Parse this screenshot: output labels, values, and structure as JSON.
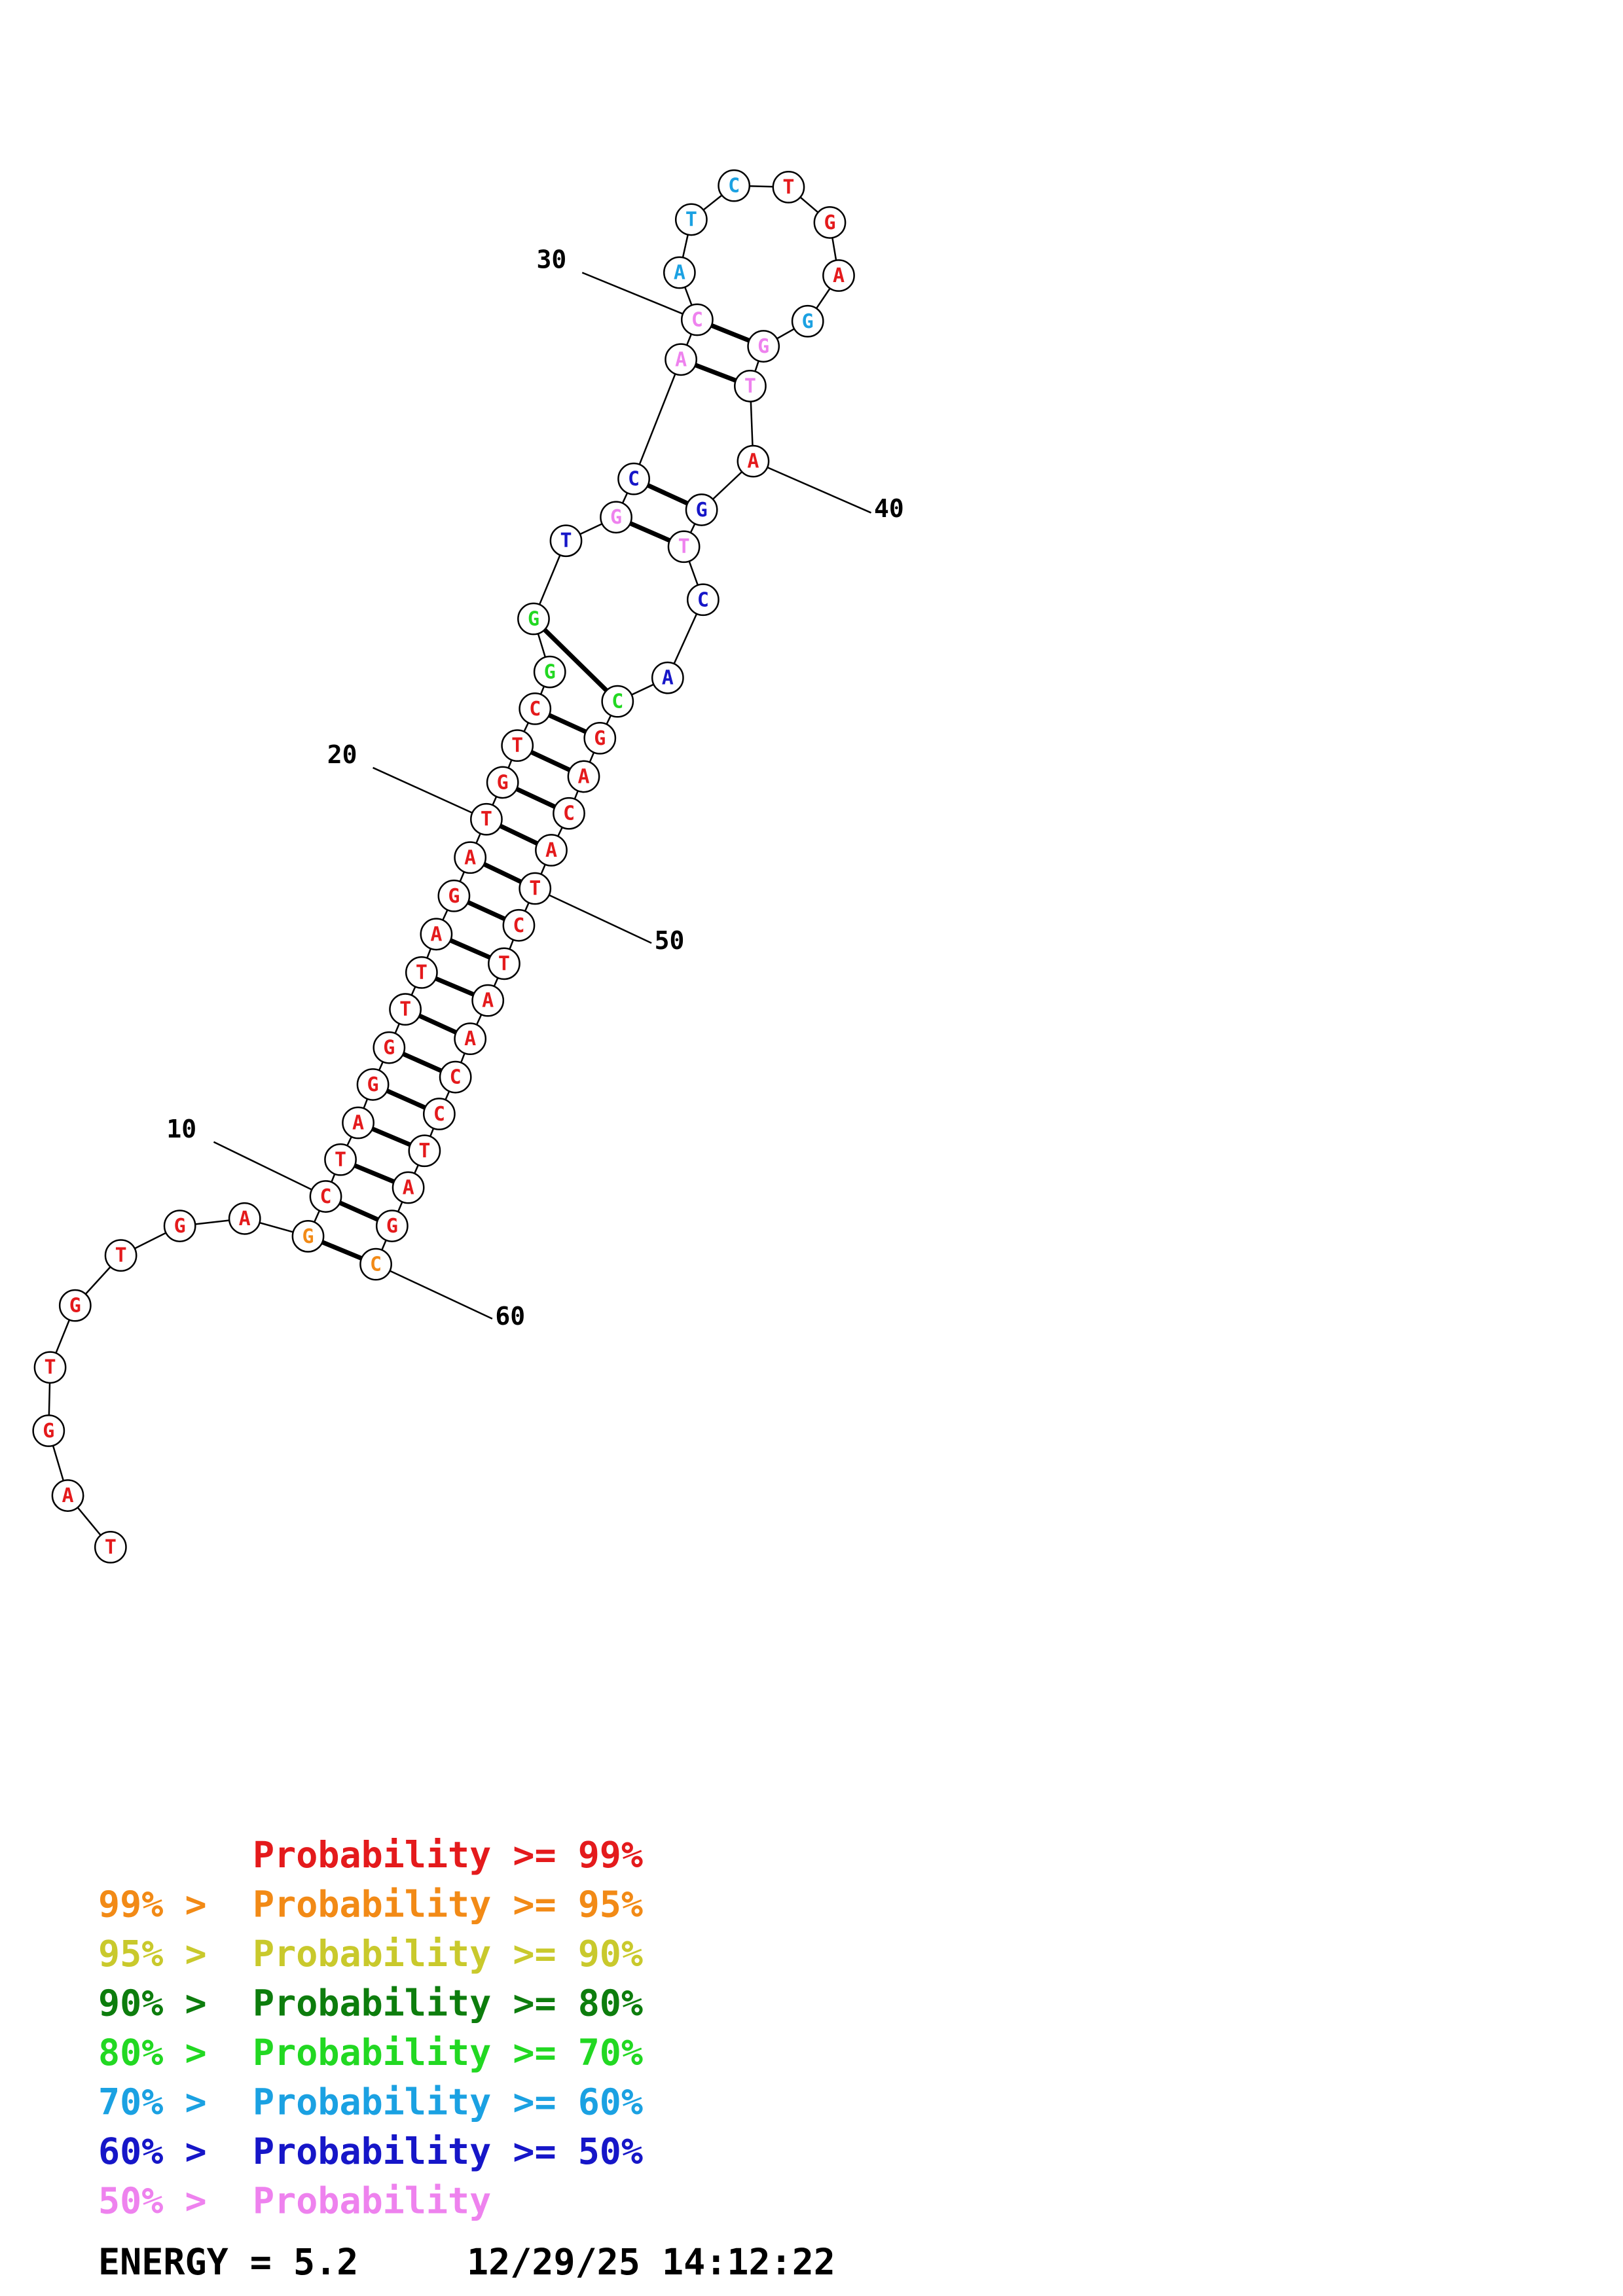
{
  "colors": {
    "red": "#e41a1c",
    "orange": "#f28a16",
    "yellow": "#c9c92c",
    "darkgreen": "#0d7d0d",
    "green": "#22d822",
    "sky": "#1ba1e2",
    "blue": "#1616c8",
    "pink": "#ee82ee"
  },
  "nucleotides": [
    {
      "i": 1,
      "b": "T",
      "c": "red"
    },
    {
      "i": 2,
      "b": "A",
      "c": "red"
    },
    {
      "i": 3,
      "b": "G",
      "c": "red"
    },
    {
      "i": 4,
      "b": "T",
      "c": "red"
    },
    {
      "i": 5,
      "b": "G",
      "c": "red"
    },
    {
      "i": 6,
      "b": "T",
      "c": "red"
    },
    {
      "i": 7,
      "b": "G",
      "c": "red"
    },
    {
      "i": 8,
      "b": "A",
      "c": "red"
    },
    {
      "i": 9,
      "b": "G",
      "c": "orange"
    },
    {
      "i": 10,
      "b": "C",
      "c": "red"
    },
    {
      "i": 11,
      "b": "T",
      "c": "red"
    },
    {
      "i": 12,
      "b": "A",
      "c": "red"
    },
    {
      "i": 13,
      "b": "G",
      "c": "red"
    },
    {
      "i": 14,
      "b": "G",
      "c": "red"
    },
    {
      "i": 15,
      "b": "T",
      "c": "red"
    },
    {
      "i": 16,
      "b": "T",
      "c": "red"
    },
    {
      "i": 17,
      "b": "A",
      "c": "red"
    },
    {
      "i": 18,
      "b": "G",
      "c": "red"
    },
    {
      "i": 19,
      "b": "A",
      "c": "red"
    },
    {
      "i": 20,
      "b": "T",
      "c": "red"
    },
    {
      "i": 21,
      "b": "G",
      "c": "red"
    },
    {
      "i": 22,
      "b": "T",
      "c": "red"
    },
    {
      "i": 23,
      "b": "C",
      "c": "red"
    },
    {
      "i": 24,
      "b": "G",
      "c": "green"
    },
    {
      "i": 25,
      "b": "G",
      "c": "green"
    },
    {
      "i": 26,
      "b": "T",
      "c": "blue"
    },
    {
      "i": 27,
      "b": "G",
      "c": "pink"
    },
    {
      "i": 28,
      "b": "C",
      "c": "blue"
    },
    {
      "i": 29,
      "b": "A",
      "c": "pink"
    },
    {
      "i": 30,
      "b": "C",
      "c": "pink"
    },
    {
      "i": 31,
      "b": "A",
      "c": "sky"
    },
    {
      "i": 32,
      "b": "T",
      "c": "sky"
    },
    {
      "i": 33,
      "b": "C",
      "c": "sky"
    },
    {
      "i": 34,
      "b": "T",
      "c": "red"
    },
    {
      "i": 35,
      "b": "G",
      "c": "red"
    },
    {
      "i": 36,
      "b": "A",
      "c": "red"
    },
    {
      "i": 37,
      "b": "G",
      "c": "sky"
    },
    {
      "i": 38,
      "b": "G",
      "c": "pink"
    },
    {
      "i": 39,
      "b": "T",
      "c": "pink"
    },
    {
      "i": 40,
      "b": "A",
      "c": "red"
    },
    {
      "i": 41,
      "b": "G",
      "c": "blue"
    },
    {
      "i": 42,
      "b": "T",
      "c": "pink"
    },
    {
      "i": 43,
      "b": "C",
      "c": "blue"
    },
    {
      "i": 44,
      "b": "A",
      "c": "blue"
    },
    {
      "i": 45,
      "b": "C",
      "c": "green"
    },
    {
      "i": 46,
      "b": "G",
      "c": "red"
    },
    {
      "i": 47,
      "b": "A",
      "c": "red"
    },
    {
      "i": 48,
      "b": "C",
      "c": "red"
    },
    {
      "i": 49,
      "b": "A",
      "c": "red"
    },
    {
      "i": 50,
      "b": "T",
      "c": "red"
    },
    {
      "i": 51,
      "b": "C",
      "c": "red"
    },
    {
      "i": 52,
      "b": "T",
      "c": "red"
    },
    {
      "i": 53,
      "b": "A",
      "c": "red"
    },
    {
      "i": 54,
      "b": "A",
      "c": "red"
    },
    {
      "i": 55,
      "b": "C",
      "c": "red"
    },
    {
      "i": 56,
      "b": "C",
      "c": "red"
    },
    {
      "i": 57,
      "b": "T",
      "c": "red"
    },
    {
      "i": 58,
      "b": "A",
      "c": "red"
    },
    {
      "i": 59,
      "b": "G",
      "c": "red"
    },
    {
      "i": 60,
      "b": "C",
      "c": "orange"
    }
  ],
  "pairs": [
    [
      9,
      60
    ],
    [
      10,
      59
    ],
    [
      11,
      58
    ],
    [
      12,
      57
    ],
    [
      13,
      56
    ],
    [
      14,
      55
    ],
    [
      15,
      54
    ],
    [
      16,
      53
    ],
    [
      17,
      52
    ],
    [
      18,
      51
    ],
    [
      19,
      50
    ],
    [
      20,
      49
    ],
    [
      21,
      48
    ],
    [
      22,
      47
    ],
    [
      23,
      46
    ],
    [
      25,
      45
    ],
    [
      27,
      42
    ],
    [
      28,
      41
    ],
    [
      29,
      39
    ],
    [
      30,
      38
    ]
  ],
  "position_labels": [
    {
      "n": 10,
      "text": "10"
    },
    {
      "n": 20,
      "text": "20"
    },
    {
      "n": 30,
      "text": "30"
    },
    {
      "n": 40,
      "text": "40"
    },
    {
      "n": 50,
      "text": "50"
    },
    {
      "n": 60,
      "text": "60"
    }
  ],
  "legend": [
    {
      "prefix": "",
      "text": "Probability >= 99%",
      "color": "red"
    },
    {
      "prefix": "99% > ",
      "text": "Probability >= 95%",
      "color": "orange"
    },
    {
      "prefix": "95% > ",
      "text": "Probability >= 90%",
      "color": "yellow"
    },
    {
      "prefix": "90% > ",
      "text": "Probability >= 80%",
      "color": "darkgreen"
    },
    {
      "prefix": "80% > ",
      "text": "Probability >= 70%",
      "color": "green"
    },
    {
      "prefix": "70% > ",
      "text": "Probability >= 60%",
      "color": "sky"
    },
    {
      "prefix": "60% > ",
      "text": "Probability >= 50%",
      "color": "blue"
    },
    {
      "prefix": "50% > ",
      "text": "Probability",
      "color": "pink"
    }
  ],
  "footer": {
    "energy": "ENERGY = 5.2",
    "timestamp": "12/29/25 14:12:22"
  }
}
